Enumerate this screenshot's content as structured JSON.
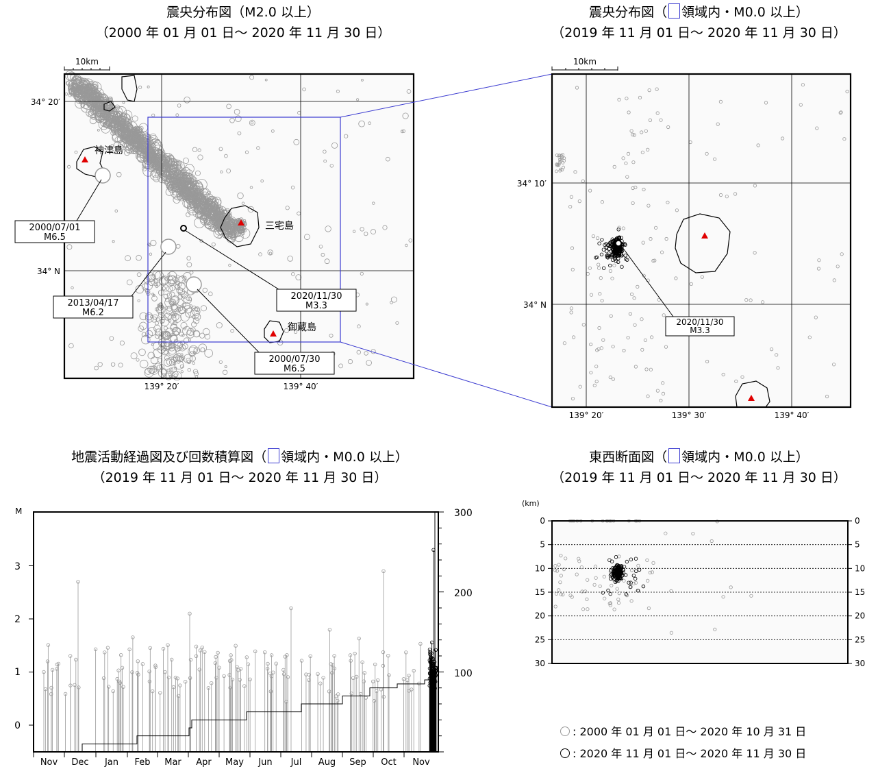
{
  "panels": {
    "top_left": {
      "title_line1": "震央分布図（M2.0 以上）",
      "title_line2": "（2000 年 01 月 01 日～ 2020 年 11 月 30 日）",
      "scale_label": "10km",
      "lat_labels": [
        "34° 20′",
        "34° N"
      ],
      "lon_labels": [
        "139° 20′",
        "139° 40′"
      ],
      "islands": [
        "神津島",
        "三宅島",
        "御蔵島"
      ],
      "callouts": [
        {
          "date": "2000/07/01",
          "mag": "M6.5"
        },
        {
          "date": "2013/04/17",
          "mag": "M6.2"
        },
        {
          "date": "2020/11/30",
          "mag": "M3.3"
        },
        {
          "date": "2000/07/30",
          "mag": "M6.5"
        }
      ]
    },
    "top_right": {
      "title_line1_a": "震央分布図（",
      "title_line1_b": "領域内・M0.0 以上）",
      "title_line2": "（2019 年 11 月 01 日～ 2020 年 11 月 30 日）",
      "scale_label": "10km",
      "lat_labels": [
        "34° 10′",
        "34° N"
      ],
      "lon_labels": [
        "139° 20′",
        "139° 30′",
        "139° 40′"
      ],
      "callout": {
        "date": "2020/11/30",
        "mag": "M3.3"
      }
    },
    "bottom_left": {
      "title_line1_a": "地震活動経過図及び回数積算図（",
      "title_line1_b": "領域内・M0.0 以上）",
      "title_line2": "（2019 年 11 月 01 日～ 2020 年 11 月 30 日）",
      "y_axis_label": "M",
      "y_ticks": [
        "0",
        "1",
        "2",
        "3"
      ],
      "y2_ticks": [
        "100",
        "200",
        "300"
      ],
      "months": [
        "Nov",
        "Dec",
        "Jan",
        "Feb",
        "Mar",
        "Apr",
        "May",
        "Jun",
        "Jul",
        "Aug",
        "Sep",
        "Oct",
        "Nov"
      ]
    },
    "bottom_right": {
      "title_line1_a": "東西断面図（",
      "title_line1_b": "領域内・M0.0 以上）",
      "title_line2": "（2019 年 11 月 01 日～ 2020 年 11 月 30 日）",
      "unit_label": "(km)",
      "depth_ticks": [
        "0",
        "5",
        "10",
        "15",
        "20",
        "25",
        "30"
      ]
    }
  },
  "legend": {
    "gray_label": ": 2000 年 01 月 01 日～ 2020 年 10 月 31 日",
    "black_label": ": 2020 年 11 月 01 日～ 2020 年 11 月 30 日"
  },
  "colors": {
    "old_events": "#999999",
    "new_events": "#000000",
    "volcano": "#e00000",
    "region": "#3a3ad0"
  },
  "chart_data": {
    "type": "scatter",
    "magnitude_time": {
      "x_range": [
        "2019-11-01",
        "2020-11-30"
      ],
      "ylim": [
        -0.5,
        3.5
      ],
      "y2lim": [
        0,
        300
      ],
      "notable_events": [
        {
          "date": "2019-11-10",
          "mag": 1.0
        },
        {
          "date": "2019-11-27",
          "mag": 2.7
        },
        {
          "date": "2020-04-01",
          "mag": 2.1
        },
        {
          "date": "2020-07-01",
          "mag": 2.2
        },
        {
          "date": "2020-09-22",
          "mag": 2.9
        },
        {
          "date": "2020-11-30",
          "mag": 3.3
        }
      ],
      "cumulative_count_end": 300
    },
    "depth_range_km": [
      0,
      30
    ]
  }
}
